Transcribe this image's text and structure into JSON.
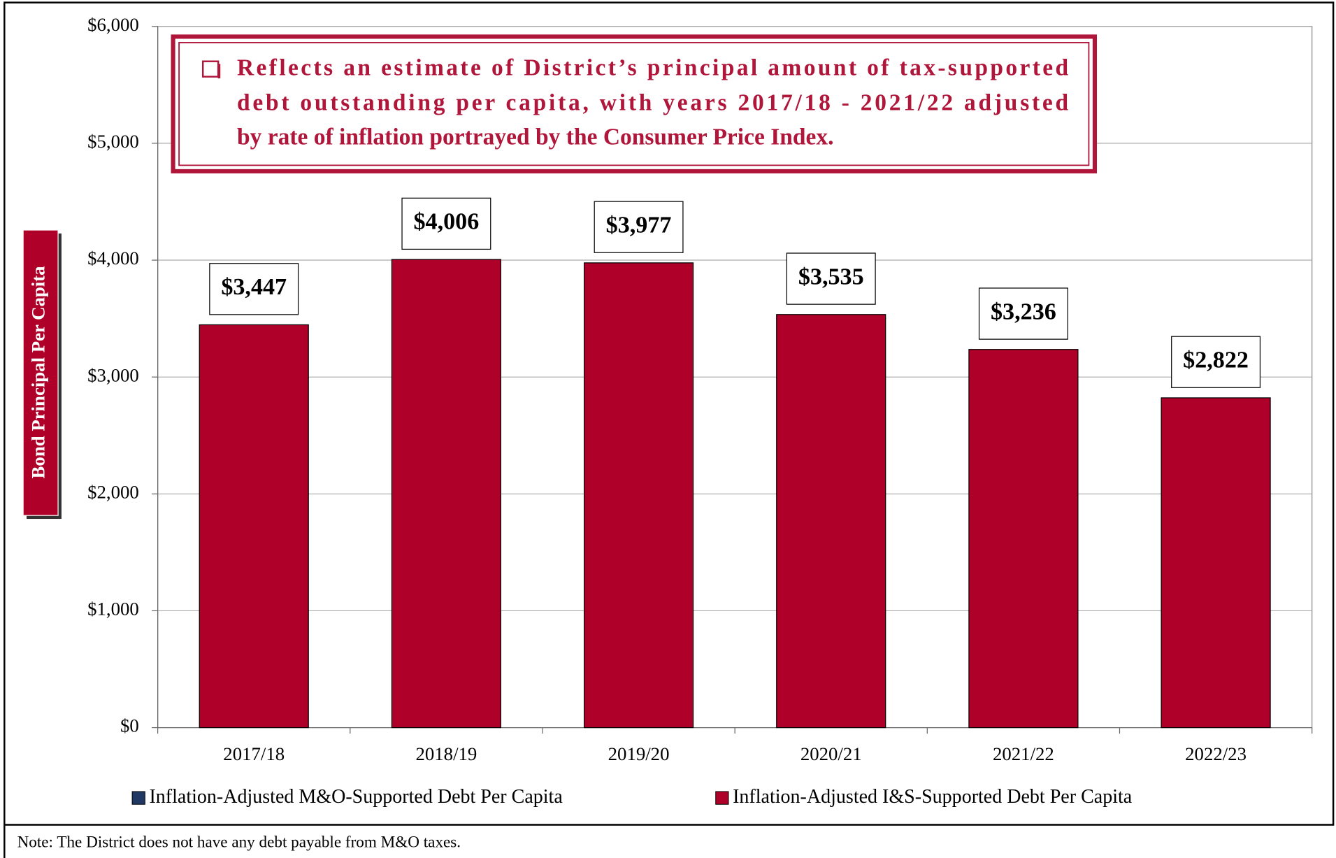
{
  "chart_data": {
    "type": "bar",
    "categories": [
      "2017/18",
      "2018/19",
      "2019/20",
      "2020/21",
      "2021/22",
      "2022/23"
    ],
    "series": [
      {
        "name": "Inflation-Adjusted M&O-Supported Debt Per Capita",
        "color": "#1f3864",
        "values": [
          0,
          0,
          0,
          0,
          0,
          0
        ]
      },
      {
        "name": "Inflation-Adjusted I&S-Supported Debt Per Capita",
        "color": "#ae0029",
        "values": [
          3447,
          4006,
          3977,
          3535,
          3236,
          2822
        ],
        "value_labels": [
          "$3,447",
          "$4,006",
          "$3,977",
          "$3,535",
          "$3,236",
          "$2,822"
        ]
      }
    ],
    "stacked": true,
    "ylabel": "Bond Principal Per Capita",
    "ylim": [
      0,
      6000
    ],
    "yticks": [
      {
        "value": 0,
        "label": "$0"
      },
      {
        "value": 1000,
        "label": "$1,000"
      },
      {
        "value": 2000,
        "label": "$2,000"
      },
      {
        "value": 3000,
        "label": "$3,000"
      },
      {
        "value": 4000,
        "label": "$4,000"
      },
      {
        "value": 5000,
        "label": "$5,000"
      },
      {
        "value": 6000,
        "label": "$6,000"
      }
    ],
    "grid": true,
    "legend": "bottom",
    "annotation": [
      "Reflects an estimate of District’s principal amount of tax-supported",
      "debt outstanding per capita, with years 2017/18 - 2021/22 adjusted",
      "by rate of inflation portrayed by the Consumer Price Index."
    ],
    "note": "Note: The District does not have any debt payable from M&O taxes."
  }
}
